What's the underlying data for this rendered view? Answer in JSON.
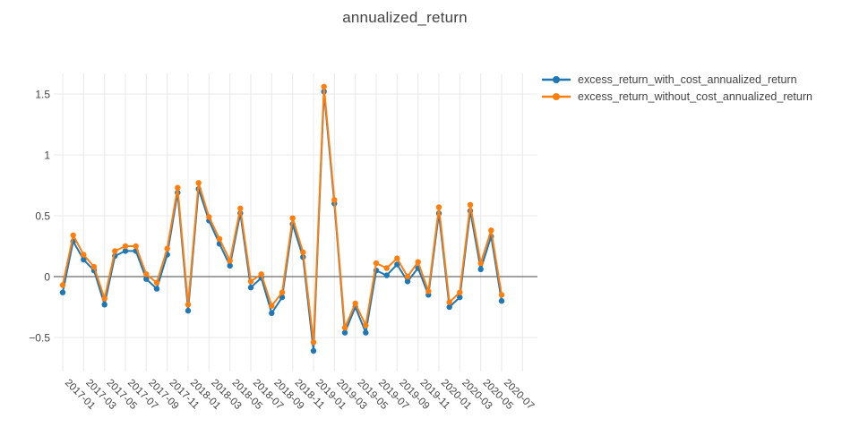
{
  "title": "annualized_return",
  "colors": {
    "with_cost": "#1f77b4",
    "without_cost": "#ff7f0e",
    "grid": "#e8e8e8",
    "zero_line": "#444444",
    "text": "#444444",
    "background": "#ffffff"
  },
  "chart_data": {
    "type": "line",
    "mode": "lines+markers",
    "title": "annualized_return",
    "xlabel": "",
    "ylabel": "",
    "grid": true,
    "legend_position": "outside-top-right",
    "x": [
      "2017-01",
      "2017-02",
      "2017-03",
      "2017-04",
      "2017-05",
      "2017-06",
      "2017-07",
      "2017-08",
      "2017-09",
      "2017-10",
      "2017-11",
      "2017-12",
      "2018-01",
      "2018-02",
      "2018-03",
      "2018-04",
      "2018-05",
      "2018-06",
      "2018-07",
      "2018-08",
      "2018-09",
      "2018-10",
      "2018-11",
      "2018-12",
      "2019-01",
      "2019-02",
      "2019-03",
      "2019-04",
      "2019-05",
      "2019-06",
      "2019-07",
      "2019-08",
      "2019-09",
      "2019-10",
      "2019-11",
      "2019-12",
      "2020-01",
      "2020-02",
      "2020-03",
      "2020-04",
      "2020-05",
      "2020-06",
      "2020-07"
    ],
    "series": [
      {
        "name": "excess_return_with_cost_annualized_return",
        "color": "#1f77b4",
        "values": [
          -0.13,
          0.29,
          0.14,
          0.05,
          -0.23,
          0.17,
          0.21,
          0.21,
          -0.02,
          -0.1,
          0.18,
          0.69,
          -0.28,
          0.72,
          0.46,
          0.27,
          0.09,
          0.52,
          -0.09,
          -0.01,
          -0.3,
          -0.17,
          0.43,
          0.16,
          -0.61,
          1.52,
          0.6,
          -0.46,
          -0.25,
          -0.46,
          0.05,
          0.01,
          0.1,
          -0.04,
          0.07,
          -0.15,
          0.52,
          -0.25,
          -0.17,
          0.54,
          0.06,
          0.33,
          -0.2
        ]
      },
      {
        "name": "excess_return_without_cost_annualized_return",
        "color": "#ff7f0e",
        "values": [
          -0.07,
          0.34,
          0.18,
          0.08,
          -0.18,
          0.21,
          0.25,
          0.25,
          0.02,
          -0.05,
          0.23,
          0.73,
          -0.23,
          0.77,
          0.49,
          0.31,
          0.13,
          0.56,
          -0.04,
          0.02,
          -0.24,
          -0.13,
          0.48,
          0.2,
          -0.54,
          1.56,
          0.63,
          -0.42,
          -0.22,
          -0.4,
          0.11,
          0.07,
          0.15,
          0.0,
          0.12,
          -0.12,
          0.57,
          -0.21,
          -0.13,
          0.59,
          0.11,
          0.38,
          -0.15
        ]
      }
    ],
    "xtick_labels": [
      "2017-01",
      "2017-03",
      "2017-05",
      "2017-07",
      "2017-09",
      "2017-11",
      "2018-01",
      "2018-03",
      "2018-05",
      "2018-07",
      "2018-09",
      "2018-11",
      "2019-01",
      "2019-03",
      "2019-05",
      "2019-07",
      "2019-09",
      "2019-11",
      "2020-01",
      "2020-03",
      "2020-05",
      "2020-07"
    ],
    "ytick_values": [
      -0.5,
      0,
      0.5,
      1,
      1.5
    ],
    "ytick_labels": [
      "−0.5",
      "0",
      "0.5",
      "1",
      "1.5"
    ],
    "ylim": [
      -0.78,
      1.67
    ]
  }
}
